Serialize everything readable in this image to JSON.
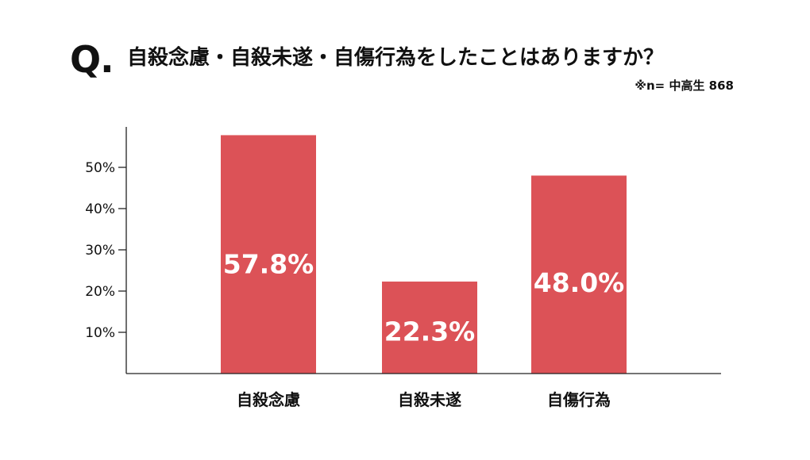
{
  "header": {
    "q_mark": "Q.",
    "question": "自殺念慮・自殺未遂・自傷行為をしたことはありますか？",
    "note": "※n= 中高生 868"
  },
  "colors": {
    "bar": "#dc5257",
    "bar_label": "#ffffff",
    "axis": "#222222",
    "text": "#111111"
  },
  "chart_data": {
    "type": "bar",
    "categories": [
      "自殺念慮",
      "自殺未遂",
      "自傷行為"
    ],
    "values": [
      57.8,
      22.3,
      48.0
    ],
    "value_labels": [
      "57.8%",
      "22.3%",
      "48.0%"
    ],
    "title": "自殺念慮・自殺未遂・自傷行為をしたことはありますか？",
    "xlabel": "",
    "ylabel": "",
    "yticks": [
      10,
      20,
      30,
      40,
      50
    ],
    "ytick_labels": [
      "10%",
      "20%",
      "30%",
      "40%",
      "50%"
    ],
    "ylim": [
      0,
      60
    ],
    "grid": false,
    "legend": "none"
  }
}
